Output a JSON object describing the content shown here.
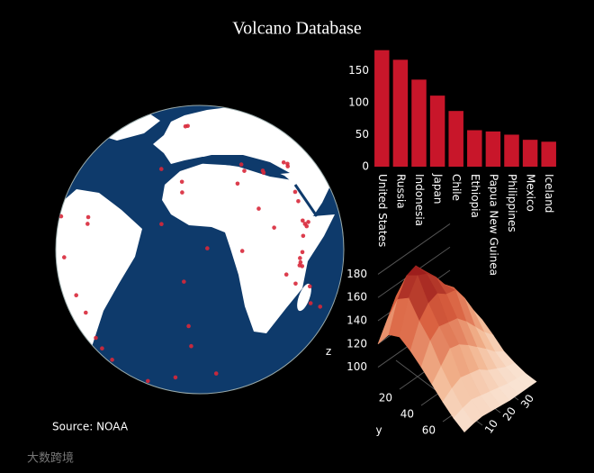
{
  "title": "Volcano Database",
  "source": "Source: NOAA",
  "watermark": "大数跨境",
  "chart_data": [
    {
      "type": "bar",
      "categories": [
        "United States",
        "Russia",
        "Indonesia",
        "Japan",
        "Chile",
        "Ethiopia",
        "Papua New Guinea",
        "Philippines",
        "Mexico",
        "Iceland"
      ],
      "values": [
        182,
        167,
        136,
        111,
        87,
        57,
        55,
        50,
        42,
        39
      ],
      "color": "#c8162a",
      "ylim": [
        0,
        190
      ],
      "yticks": [
        0,
        50,
        100,
        150
      ]
    },
    {
      "type": "scattergeo",
      "color": "#d8283a",
      "lat": [
        64,
        63.6,
        38.7,
        28.3,
        15,
        40.8,
        37.7,
        37.4,
        36.4,
        38.5,
        39.7,
        40.5,
        4.2,
        21,
        13,
        15,
        13.6,
        14.2,
        12.6,
        8.9,
        0.2,
        -1.5,
        -3.1,
        -2.7,
        2.5,
        27,
        23,
        -11.7,
        -19,
        -21.2,
        -7.9,
        -37.1,
        -54.4,
        -57.8,
        -63,
        -1.4,
        -16.3,
        -23.5,
        -35.6,
        -41.3,
        -48,
        13.3,
        16,
        14,
        -6,
        -10,
        5.5,
        -27.1,
        32,
        33
      ],
      "lon": [
        -19,
        -21,
        -28,
        -16,
        -24,
        14.4,
        15,
        25.4,
        25.4,
        43.3,
        44.3,
        42,
        9.2,
        18,
        24,
        39.7,
        40.7,
        43,
        41.5,
        38.6,
        36.1,
        36.4,
        37.4,
        35.9,
        37.5,
        40,
        40,
        43.3,
        46.5,
        55.7,
        -14.4,
        -12.3,
        3.3,
        -26.5,
        -60.6,
        -78.4,
        -71.4,
        -67.7,
        -70.6,
        -72.6,
        -73.5,
        -61.2,
        -61.7,
        -91,
        29.2,
        34.5,
        -5,
        -13,
        10,
        -16.5
      ]
    },
    {
      "type": "surface",
      "x": [
        0,
        5,
        10,
        15,
        20,
        25,
        30,
        35,
        40
      ],
      "y": [
        0,
        10,
        20,
        30,
        40,
        50,
        60,
        70,
        80
      ],
      "z": [
        [
          120,
          135,
          150,
          155,
          150,
          140,
          130,
          120,
          110
        ],
        [
          135,
          160,
          175,
          178,
          168,
          155,
          140,
          128,
          115
        ],
        [
          140,
          168,
          182,
          178,
          170,
          158,
          150,
          135,
          120
        ],
        [
          135,
          155,
          165,
          168,
          162,
          160,
          148,
          132,
          118
        ],
        [
          128,
          145,
          152,
          150,
          148,
          140,
          130,
          120,
          112
        ],
        [
          120,
          130,
          140,
          138,
          132,
          125,
          118,
          110,
          105
        ],
        [
          112,
          118,
          122,
          120,
          118,
          112,
          108,
          104,
          102
        ],
        [
          105,
          108,
          110,
          108,
          106,
          104,
          102,
          101,
          100
        ],
        [
          100,
          102,
          103,
          102,
          101,
          100,
          100,
          100,
          100
        ]
      ],
      "xlim": [
        0,
        40
      ],
      "ylim": [
        0,
        80
      ],
      "zlim": [
        95,
        185
      ],
      "xticks": [
        10,
        20,
        30
      ],
      "yticks": [
        20,
        40,
        60
      ],
      "zticks": [
        100,
        120,
        140,
        160,
        180
      ],
      "ylabel": "y",
      "zlabel": "z",
      "colorscale": [
        "#fbeee2",
        "#f2b48e",
        "#d9603f",
        "#8b0b12"
      ]
    }
  ]
}
